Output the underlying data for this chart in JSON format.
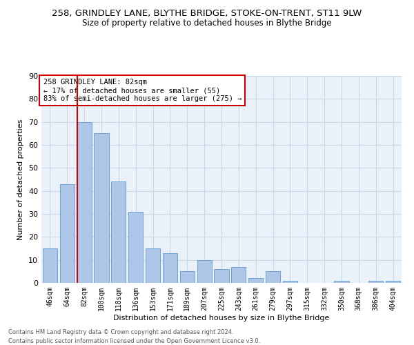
{
  "title": "258, GRINDLEY LANE, BLYTHE BRIDGE, STOKE-ON-TRENT, ST11 9LW",
  "subtitle": "Size of property relative to detached houses in Blythe Bridge",
  "xlabel": "Distribution of detached houses by size in Blythe Bridge",
  "ylabel": "Number of detached properties",
  "footnote1": "Contains HM Land Registry data © Crown copyright and database right 2024.",
  "footnote2": "Contains public sector information licensed under the Open Government Licence v3.0.",
  "annotation_line1": "258 GRINDLEY LANE: 82sqm",
  "annotation_line2": "← 17% of detached houses are smaller (55)",
  "annotation_line3": "83% of semi-detached houses are larger (275) →",
  "bar_labels": [
    "46sqm",
    "64sqm",
    "82sqm",
    "100sqm",
    "118sqm",
    "136sqm",
    "153sqm",
    "171sqm",
    "189sqm",
    "207sqm",
    "225sqm",
    "243sqm",
    "261sqm",
    "279sqm",
    "297sqm",
    "315sqm",
    "332sqm",
    "350sqm",
    "368sqm",
    "386sqm",
    "404sqm"
  ],
  "bar_values": [
    15,
    43,
    70,
    65,
    44,
    31,
    15,
    13,
    5,
    10,
    6,
    7,
    2,
    5,
    1,
    0,
    0,
    1,
    0,
    1,
    1
  ],
  "bar_color": "#aec6e8",
  "bar_edge_color": "#5b9bd5",
  "vline_color": "#cc0000",
  "annotation_box_color": "#cc0000",
  "ylim": [
    0,
    90
  ],
  "yticks": [
    0,
    10,
    20,
    30,
    40,
    50,
    60,
    70,
    80,
    90
  ],
  "grid_color": "#c8d8e8",
  "background_color": "#eaf1f8",
  "title_fontsize": 9.5,
  "subtitle_fontsize": 8.5,
  "ylabel_fontsize": 8,
  "xlabel_fontsize": 8
}
